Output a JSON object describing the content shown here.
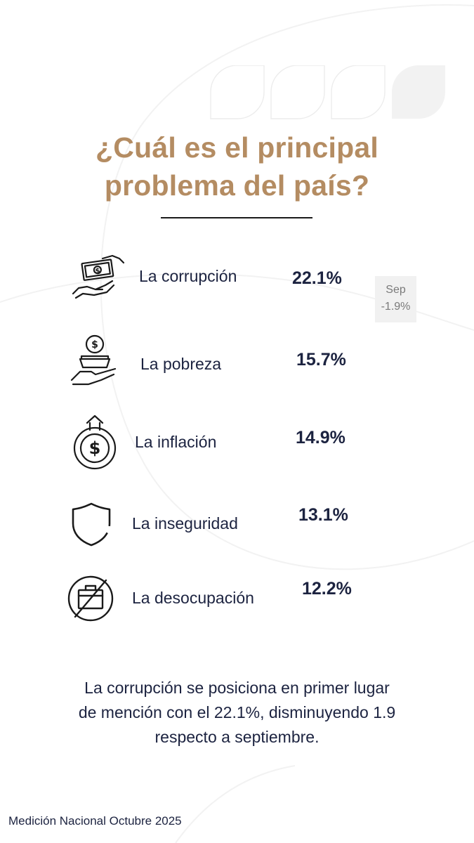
{
  "title": {
    "line1": "¿Cuál es el principal",
    "line2": "problema del país?"
  },
  "items": [
    {
      "label": "La corrupción",
      "percent": "22.1%",
      "icon": "money-hand-icon"
    },
    {
      "label": "La pobreza",
      "percent": "15.7%",
      "icon": "empty-bowl-hand-icon"
    },
    {
      "label": "La inflación",
      "percent": "14.9%",
      "icon": "rising-dollar-icon"
    },
    {
      "label": "La inseguridad",
      "percent": "13.1%",
      "icon": "shield-icon"
    },
    {
      "label": "La desocupación",
      "percent": "12.2%",
      "icon": "no-briefcase-icon"
    }
  ],
  "comparison": {
    "month": "Sep",
    "delta": "-1.9%"
  },
  "summary": {
    "line1": "La corrupción se posiciona en primer lugar",
    "line2": "de mención con el 22.1%, disminuyendo 1.9",
    "line3": "respecto a septiembre."
  },
  "footer": "Medición Nacional Octubre 2025",
  "colors": {
    "accent": "#b48c62",
    "text": "#1c2340",
    "background": "#ffffff"
  }
}
